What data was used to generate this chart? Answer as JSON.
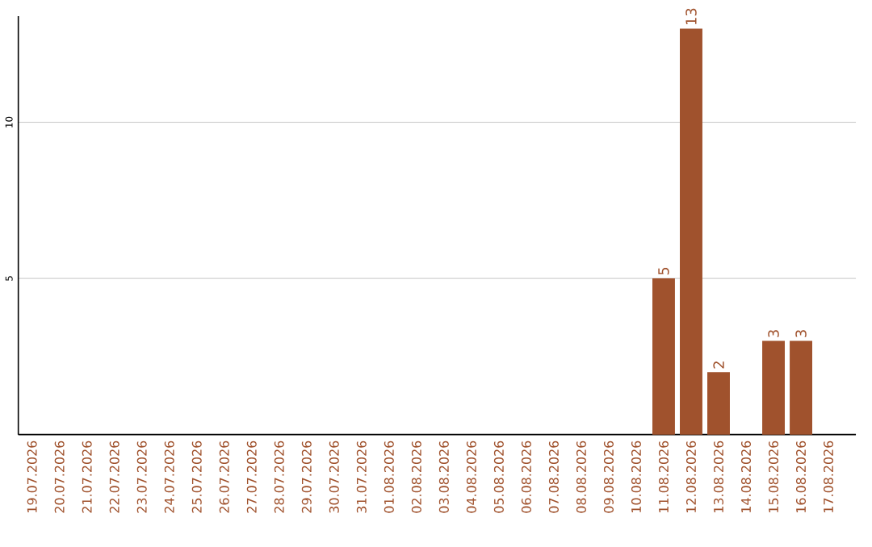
{
  "chart_data": {
    "type": "bar",
    "categories": [
      "19.07.2026",
      "20.07.2026",
      "21.07.2026",
      "22.07.2026",
      "23.07.2026",
      "24.07.2026",
      "25.07.2026",
      "26.07.2026",
      "27.07.2026",
      "28.07.2026",
      "29.07.2026",
      "30.07.2026",
      "31.07.2026",
      "01.08.2026",
      "02.08.2026",
      "03.08.2026",
      "04.08.2026",
      "05.08.2026",
      "06.08.2026",
      "07.08.2026",
      "08.08.2026",
      "09.08.2026",
      "10.08.2026",
      "11.08.2026",
      "12.08.2026",
      "13.08.2026",
      "14.08.2026",
      "15.08.2026",
      "16.08.2026",
      "17.08.2026"
    ],
    "values": [
      0,
      0,
      0,
      0,
      0,
      0,
      0,
      0,
      0,
      0,
      0,
      0,
      0,
      0,
      0,
      0,
      0,
      0,
      0,
      0,
      0,
      0,
      0,
      5,
      13,
      2,
      0,
      3,
      3,
      0
    ],
    "value_labels": [
      null,
      null,
      null,
      null,
      null,
      null,
      null,
      null,
      null,
      null,
      null,
      null,
      null,
      null,
      null,
      null,
      null,
      null,
      null,
      null,
      null,
      null,
      null,
      "5",
      "13",
      "2",
      null,
      "3",
      "3",
      null
    ],
    "color": "#a0522d",
    "ylim": [
      0,
      13.4
    ],
    "yticks": [
      5,
      10
    ],
    "grid": "y"
  }
}
